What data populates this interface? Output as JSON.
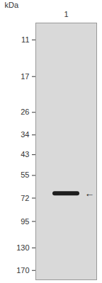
{
  "chart_data": {
    "type": "western_blot",
    "y_label": "kDa",
    "categories": [
      "1"
    ],
    "values": [
      68
    ],
    "annotation": "←",
    "color": "#1e1e1e",
    "log": "y",
    "ylim": [
      9,
      190
    ],
    "yticks": [
      170,
      130,
      95,
      72,
      55,
      43,
      34,
      26,
      17,
      11
    ]
  }
}
